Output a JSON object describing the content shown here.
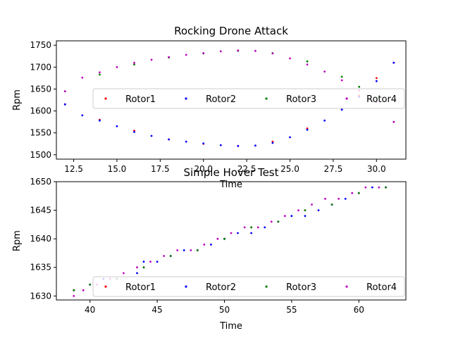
{
  "chart_data": [
    {
      "type": "scatter",
      "title": "Rocking Drone Attack",
      "xlabel": "Time",
      "ylabel": "Rpm",
      "xlim": [
        11.5,
        31.7
      ],
      "ylim": [
        1490,
        1760
      ],
      "xticks": [
        12.5,
        15.0,
        17.5,
        20.0,
        22.5,
        25.0,
        27.5,
        30.0
      ],
      "xtick_labels": [
        "12.5",
        "15.0",
        "17.5",
        "20.0",
        "22.5",
        "25.0",
        "27.5",
        "30.0"
      ],
      "yticks": [
        1500,
        1550,
        1600,
        1650,
        1700,
        1750
      ],
      "ytick_labels": [
        "1500",
        "1550",
        "1600",
        "1650",
        "1700",
        "1750"
      ],
      "grid": false,
      "legend_position": "center",
      "legend_columns": 4,
      "series": [
        {
          "name": "Rotor1",
          "color": "#ff0000",
          "marker": "dot",
          "x": [
            12.0,
            14.0,
            16.0,
            18.0,
            20.0,
            22.0,
            24.0,
            26.0,
            28.0,
            29.0,
            30.0,
            31.0
          ],
          "y": [
            1615,
            1580,
            1555,
            1535,
            1525,
            1520,
            1530,
            1560,
            1605,
            1635,
            1675,
            1710
          ]
        },
        {
          "name": "Rotor2",
          "color": "#0000ff",
          "marker": "dot",
          "x": [
            12.0,
            13.0,
            14.0,
            15.0,
            16.0,
            17.0,
            18.0,
            19.0,
            20.0,
            21.0,
            22.0,
            23.0,
            24.0,
            25.0,
            26.0,
            27.0,
            28.0,
            29.0,
            30.0,
            31.0
          ],
          "y": [
            1615,
            1590,
            1578,
            1565,
            1552,
            1543,
            1535,
            1530,
            1526,
            1522,
            1520,
            1521,
            1527,
            1540,
            1557,
            1578,
            1603,
            1632,
            1668,
            1710
          ]
        },
        {
          "name": "Rotor3",
          "color": "#008000",
          "marker": "dot",
          "x": [
            12.0,
            14.0,
            16.0,
            18.0,
            20.0,
            22.0,
            24.0,
            26.0,
            28.0,
            29.0,
            30.0,
            31.0
          ],
          "y": [
            1645,
            1683,
            1706,
            1722,
            1731,
            1737,
            1732,
            1713,
            1678,
            1655,
            1625,
            1575
          ]
        },
        {
          "name": "Rotor4",
          "color": "#bf00bf",
          "marker": "dot",
          "x": [
            12.0,
            13.0,
            14.0,
            15.0,
            16.0,
            17.0,
            18.0,
            19.0,
            20.0,
            21.0,
            22.0,
            23.0,
            24.0,
            25.0,
            26.0,
            27.0,
            28.0,
            29.0,
            30.0,
            31.0
          ],
          "y": [
            1645,
            1676,
            1688,
            1700,
            1710,
            1717,
            1723,
            1728,
            1732,
            1736,
            1738,
            1737,
            1731,
            1720,
            1706,
            1690,
            1670,
            1647,
            1620,
            1575
          ]
        }
      ]
    },
    {
      "type": "scatter",
      "title": "Simple Hover Test",
      "xlabel": "Time",
      "ylabel": "Rpm",
      "xlim": [
        37.5,
        63.5
      ],
      "ylim": [
        1629.3,
        1650.0
      ],
      "xticks": [
        40,
        45,
        50,
        55,
        60
      ],
      "xtick_labels": [
        "40",
        "45",
        "50",
        "55",
        "60"
      ],
      "yticks": [
        1630,
        1635,
        1640,
        1645,
        1650
      ],
      "ytick_labels": [
        "1630",
        "1635",
        "1640",
        "1645",
        "1650"
      ],
      "grid": false,
      "legend_position": "lower center",
      "legend_columns": 4,
      "series": [
        {
          "name": "Rotor1",
          "color": "#ff0000",
          "marker": "dot",
          "x": [
            38.8,
            40.0,
            42.0,
            44.0,
            46.0,
            48.0,
            50.0,
            52.0,
            54.0,
            56.0,
            58.0,
            60.0,
            62.0
          ],
          "y": [
            1631,
            1632,
            1633,
            1635,
            1637,
            1638,
            1640,
            1642,
            1643,
            1645,
            1646,
            1648,
            1649
          ]
        },
        {
          "name": "Rotor2",
          "color": "#0000ff",
          "marker": "dot",
          "x": [
            38.8,
            40.0,
            41.0,
            42.0,
            43.5,
            44.0,
            45.0,
            46.0,
            47.0,
            48.0,
            49.0,
            50.0,
            51.0,
            52.0,
            53.0,
            54.0,
            55.0,
            56.0,
            57.0,
            58.0,
            59.0,
            60.0,
            61.0,
            62.0
          ],
          "y": [
            1631,
            1632,
            1633,
            1633,
            1634,
            1636,
            1636,
            1637,
            1638,
            1638,
            1639,
            1640,
            1641,
            1641,
            1642,
            1643,
            1644,
            1644,
            1645,
            1646,
            1647,
            1648,
            1649,
            1649
          ]
        },
        {
          "name": "Rotor3",
          "color": "#008000",
          "marker": "dot",
          "x": [
            38.8,
            40.0,
            42.0,
            44.0,
            46.0,
            48.0,
            50.0,
            52.0,
            54.0,
            56.0,
            58.0,
            60.0,
            62.0
          ],
          "y": [
            1631,
            1632,
            1633,
            1635,
            1637,
            1638,
            1640,
            1642,
            1643,
            1645,
            1646,
            1648,
            1649
          ]
        },
        {
          "name": "Rotor4",
          "color": "#bf00bf",
          "marker": "dot",
          "x": [
            38.8,
            39.5,
            40.5,
            41.5,
            42.5,
            43.5,
            44.5,
            45.5,
            46.5,
            47.5,
            48.5,
            49.5,
            50.5,
            51.5,
            52.5,
            53.5,
            54.5,
            55.5,
            56.5,
            57.5,
            58.5,
            59.5,
            60.5,
            61.5
          ],
          "y": [
            1630,
            1631,
            1632,
            1633,
            1634,
            1635,
            1636,
            1637,
            1638,
            1638,
            1639,
            1640,
            1641,
            1642,
            1642,
            1643,
            1644,
            1645,
            1646,
            1647,
            1647,
            1648,
            1649,
            1649
          ]
        }
      ]
    }
  ]
}
